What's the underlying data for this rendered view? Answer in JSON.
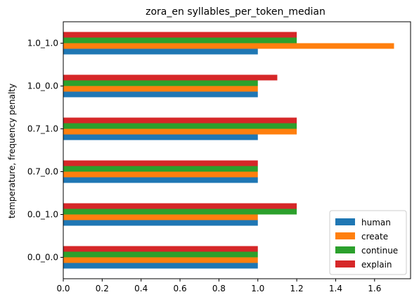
{
  "chart_data": {
    "type": "bar",
    "orientation": "horizontal",
    "title": "zora_en syllables_per_token_median",
    "xlabel": "",
    "ylabel": "temperature, frequency penalty",
    "categories": [
      "0.0_0.0",
      "0.0_1.0",
      "0.7_0.0",
      "0.7_1.0",
      "1.0_0.0",
      "1.0_1.0"
    ],
    "series": [
      {
        "name": "human",
        "color": "#1f77b4",
        "values": [
          1.0,
          1.0,
          1.0,
          1.0,
          1.0,
          1.0
        ]
      },
      {
        "name": "create",
        "color": "#ff7f0e",
        "values": [
          1.0,
          1.0,
          1.0,
          1.2,
          1.0,
          1.7
        ]
      },
      {
        "name": "continue",
        "color": "#2ca02c",
        "values": [
          1.0,
          1.2,
          1.0,
          1.2,
          1.0,
          1.2
        ]
      },
      {
        "name": "explain",
        "color": "#d62728",
        "values": [
          1.0,
          1.2,
          1.0,
          1.2,
          1.1,
          1.2
        ]
      }
    ],
    "xlim": [
      0,
      1.785
    ],
    "xticks": [
      "0.0",
      "0.2",
      "0.4",
      "0.6",
      "0.8",
      "1.0",
      "1.2",
      "1.4",
      "1.6"
    ],
    "grid": false,
    "legend_position": "lower-right"
  }
}
